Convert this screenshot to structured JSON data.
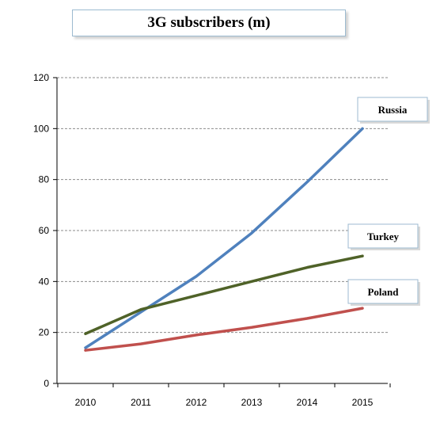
{
  "chart_data": {
    "type": "line",
    "title": "3G subscribers (m)",
    "xlabel": "",
    "ylabel": "",
    "categories": [
      "2010",
      "2011",
      "2012",
      "2013",
      "2014",
      "2015"
    ],
    "yticks": [
      "0",
      "20",
      "40",
      "60",
      "80",
      "100",
      "120"
    ],
    "ylim": [
      0,
      120
    ],
    "grid": true,
    "legend": "inline labels at line ends",
    "series": [
      {
        "name": "Russia",
        "color": "#4f81bd",
        "values": [
          14,
          28,
          42,
          59,
          79,
          100
        ]
      },
      {
        "name": "Turkey",
        "color": "#4f6228",
        "values": [
          19.5,
          29,
          34.5,
          40,
          45.5,
          50
        ]
      },
      {
        "name": "Poland",
        "color": "#c0504d",
        "values": [
          13,
          15.5,
          19,
          22,
          25.5,
          29.5
        ]
      }
    ]
  }
}
